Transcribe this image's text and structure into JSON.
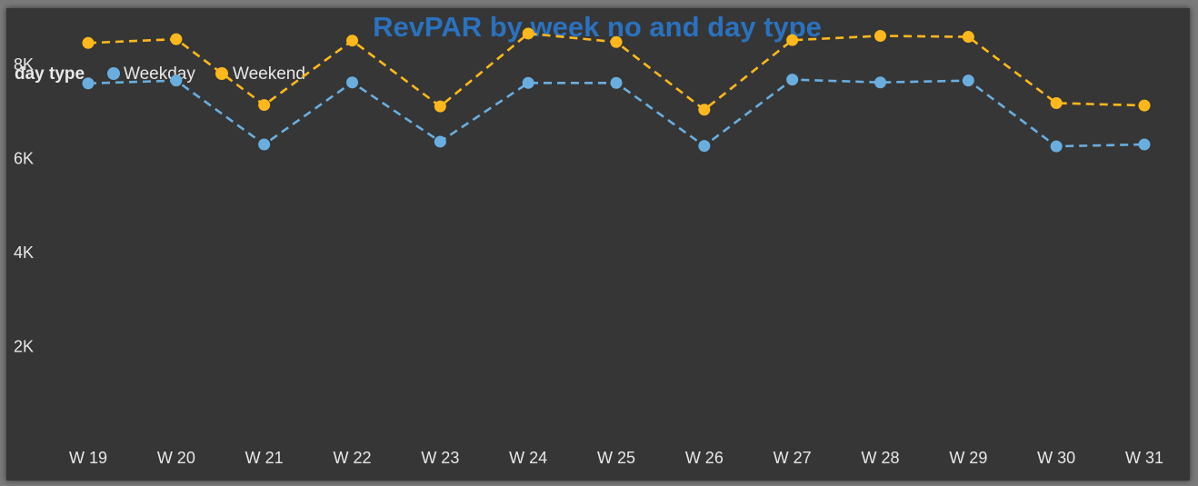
{
  "colors": {
    "title": "#2a72c0",
    "text": "#e8e8e8",
    "weekday": "#6aaee0",
    "weekend": "#ffb81c",
    "background": "#363636"
  },
  "chart_data": {
    "type": "line",
    "title": "RevPAR by week no and day type",
    "legend_title": "day type",
    "legend_position": "top-left",
    "grid": false,
    "categories": [
      "W 19",
      "W 20",
      "W 21",
      "W 22",
      "W 23",
      "W 24",
      "W 25",
      "W 26",
      "W 27",
      "W 28",
      "W 29",
      "W 30",
      "W 31"
    ],
    "y_ticks": [
      {
        "value": 2000,
        "label": "2K"
      },
      {
        "value": 4000,
        "label": "4K"
      },
      {
        "value": 6000,
        "label": "6K"
      },
      {
        "value": 8000,
        "label": "8K"
      }
    ],
    "ylim": [
      0,
      9200
    ],
    "series": [
      {
        "name": "Weekday",
        "color": "#6aaee0",
        "style": "dashed",
        "values": [
          7600,
          7660,
          6300,
          7620,
          6360,
          7610,
          7610,
          6270,
          7680,
          7620,
          7660,
          6260,
          6300
        ]
      },
      {
        "name": "Weekend",
        "color": "#ffb81c",
        "style": "dashed",
        "values": [
          8460,
          8540,
          7140,
          8510,
          7110,
          8660,
          8480,
          7040,
          8520,
          8610,
          8590,
          7180,
          7130
        ]
      }
    ]
  }
}
